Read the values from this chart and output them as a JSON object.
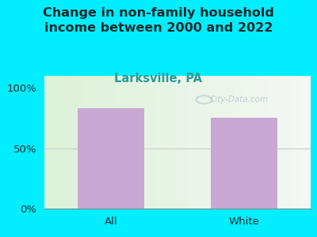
{
  "title": "Change in non-family household\nincome between 2000 and 2022",
  "subtitle": "Larksville, PA",
  "categories": [
    "All",
    "White"
  ],
  "values": [
    83,
    75
  ],
  "bar_color": "#c9a8d4",
  "title_color": "#1a2a2a",
  "subtitle_color": "#2a9a9a",
  "background_outer": "#00eeff",
  "yticks": [
    0,
    50,
    100
  ],
  "ytick_labels": [
    "0%",
    "50%",
    "100%"
  ],
  "ylim": [
    0,
    110
  ],
  "title_fontsize": 11.5,
  "subtitle_fontsize": 10.5,
  "tick_fontsize": 9.5,
  "watermark": "City-Data.com"
}
